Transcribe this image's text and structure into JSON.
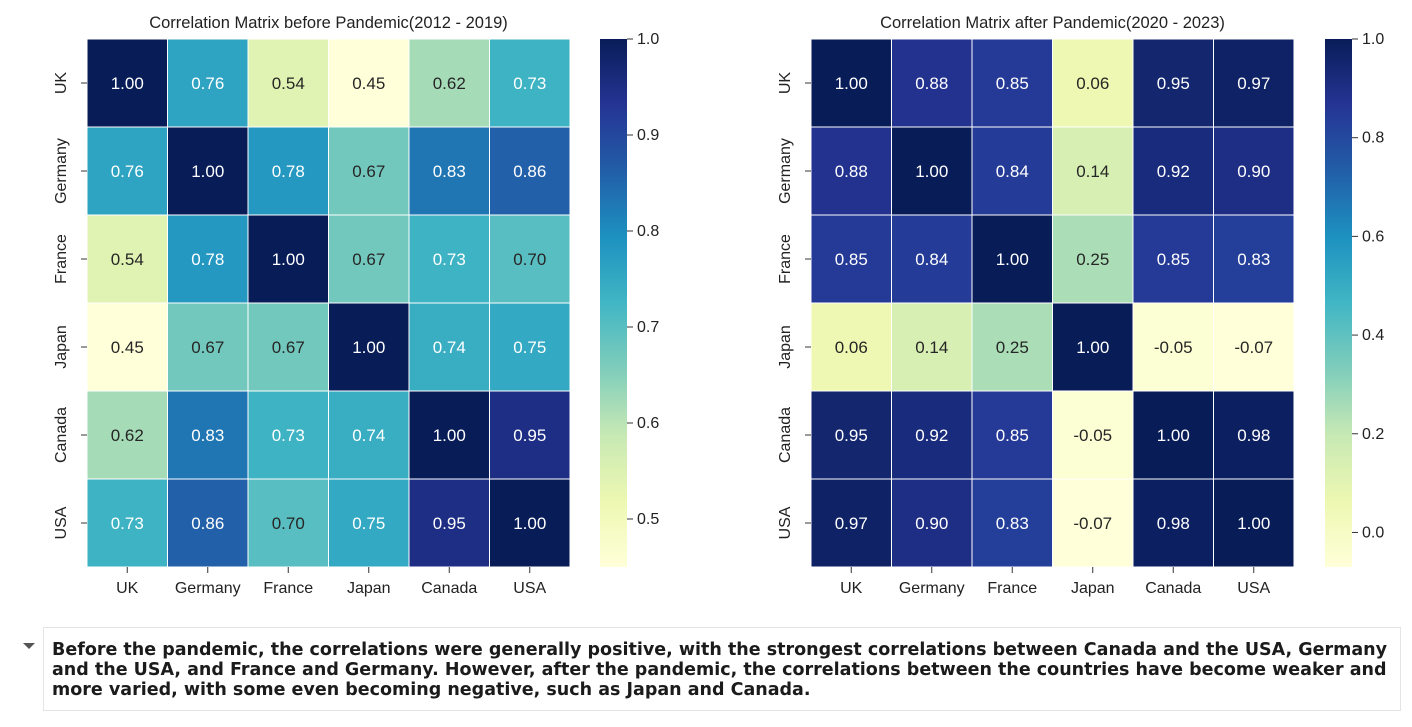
{
  "chart_data": [
    {
      "type": "heatmap",
      "title": "Correlation Matrix before Pandemic(2012 - 2019)",
      "row_labels": [
        "UK",
        "Germany",
        "France",
        "Japan",
        "Canada",
        "USA"
      ],
      "col_labels": [
        "UK",
        "Germany",
        "France",
        "Japan",
        "Canada",
        "USA"
      ],
      "values": [
        [
          1.0,
          0.76,
          0.54,
          0.45,
          0.62,
          0.73
        ],
        [
          0.76,
          1.0,
          0.78,
          0.67,
          0.83,
          0.86
        ],
        [
          0.54,
          0.78,
          1.0,
          0.67,
          0.73,
          0.7
        ],
        [
          0.45,
          0.67,
          0.67,
          1.0,
          0.74,
          0.75
        ],
        [
          0.62,
          0.83,
          0.73,
          0.74,
          1.0,
          0.95
        ],
        [
          0.73,
          0.86,
          0.7,
          0.75,
          0.95,
          1.0
        ]
      ],
      "colormap": "YlGnBu",
      "color_range": [
        0.45,
        1.0
      ],
      "colorbar_ticks": [
        "0.5",
        "0.6",
        "0.7",
        "0.8",
        "0.9",
        "1.0"
      ],
      "colorbar_tick_values": [
        0.5,
        0.6,
        0.7,
        0.8,
        0.9,
        1.0
      ]
    },
    {
      "type": "heatmap",
      "title": "Correlation Matrix after Pandemic(2020 - 2023)",
      "row_labels": [
        "UK",
        "Germany",
        "France",
        "Japan",
        "Canada",
        "USA"
      ],
      "col_labels": [
        "UK",
        "Germany",
        "France",
        "Japan",
        "Canada",
        "USA"
      ],
      "values": [
        [
          1.0,
          0.88,
          0.85,
          0.06,
          0.95,
          0.97
        ],
        [
          0.88,
          1.0,
          0.84,
          0.14,
          0.92,
          0.9
        ],
        [
          0.85,
          0.84,
          1.0,
          0.25,
          0.85,
          0.83
        ],
        [
          0.06,
          0.14,
          0.25,
          1.0,
          -0.05,
          -0.07
        ],
        [
          0.95,
          0.92,
          0.85,
          -0.05,
          1.0,
          0.98
        ],
        [
          0.97,
          0.9,
          0.83,
          -0.07,
          0.98,
          1.0
        ]
      ],
      "colormap": "YlGnBu",
      "color_range": [
        -0.07,
        1.0
      ],
      "colorbar_ticks": [
        "0.0",
        "0.2",
        "0.4",
        "0.6",
        "0.8",
        "1.0"
      ],
      "colorbar_tick_values": [
        0.0,
        0.2,
        0.4,
        0.6,
        0.8,
        1.0
      ]
    }
  ],
  "note": {
    "text": "Before the pandemic, the correlations were generally positive, with the strongest correlations between Canada and the USA, Germany and the USA, and France and Germany. However, after the pandemic, the correlations between the countries have become weaker and more varied, with some even becoming negative, such as Japan and Canada."
  },
  "icons": {
    "collapse": "caret-down-icon"
  }
}
